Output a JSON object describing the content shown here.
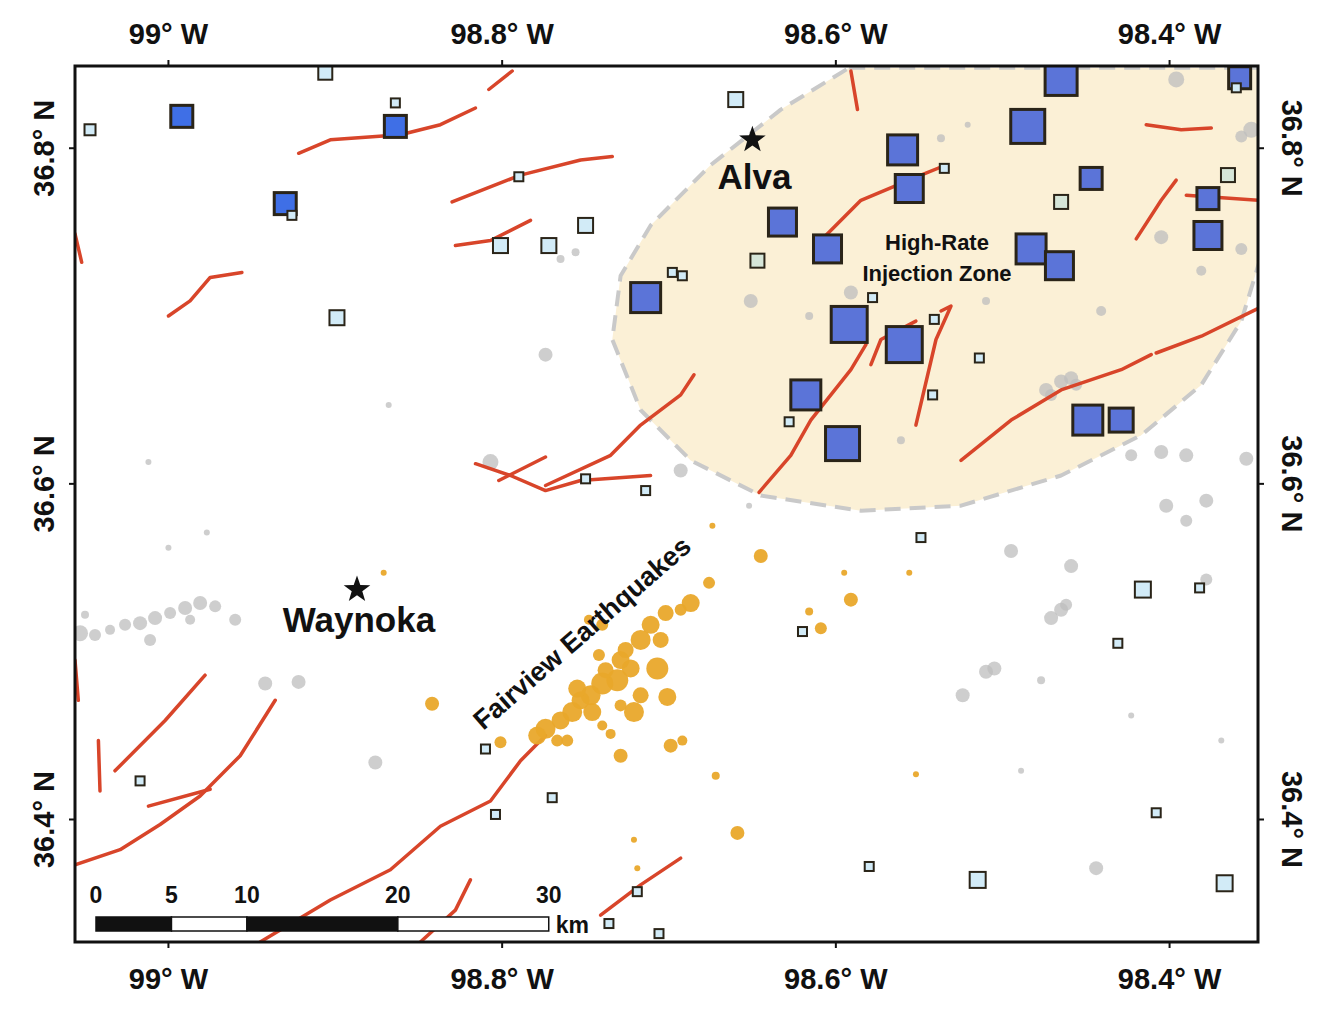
{
  "chart_data": {
    "type": "map",
    "xlim": [
      -99.056,
      -98.347
    ],
    "ylim": [
      36.327,
      36.849
    ],
    "xticks": [
      {
        "value": -99,
        "label": "99° W"
      },
      {
        "value": -98.8,
        "label": "98.8° W"
      },
      {
        "value": -98.6,
        "label": "98.6° W"
      },
      {
        "value": -98.4,
        "label": "98.4° W"
      }
    ],
    "yticks": [
      {
        "value": 36.4,
        "label": "36.4° N"
      },
      {
        "value": 36.6,
        "label": "36.6° N"
      },
      {
        "value": 36.8,
        "label": "36.8° N"
      }
    ],
    "grid": false,
    "zone": {
      "label": [
        "High-Rate",
        "Injection Zone"
      ],
      "color": "#fbf0d6",
      "lon": [
        -98.592,
        -98.346,
        -98.346,
        -98.357,
        -98.381,
        -98.417,
        -98.465,
        -98.525,
        -98.585,
        -98.645,
        -98.687,
        -98.717,
        -98.734,
        -98.729,
        -98.711,
        -98.675,
        -98.633
      ],
      "lat": [
        36.848,
        36.848,
        36.733,
        36.697,
        36.659,
        36.629,
        36.605,
        36.587,
        36.584,
        36.593,
        36.614,
        36.644,
        36.686,
        36.724,
        36.754,
        36.79,
        36.823
      ]
    },
    "towns": [
      {
        "name": "Alva",
        "lon": -98.65,
        "lat": 36.805
      },
      {
        "name": "Waynoka",
        "lon": -98.887,
        "lat": 36.537
      }
    ],
    "faults": {
      "color": "#d8452a",
      "lines": [
        {
          "lon": [
            -98.922,
            -98.903,
            -98.861,
            -98.837,
            -98.816
          ],
          "lat": [
            36.797,
            36.805,
            36.808,
            36.814,
            36.824
          ]
        },
        {
          "lon": [
            -98.808,
            -98.794
          ],
          "lat": [
            36.835,
            36.846
          ]
        },
        {
          "lon": [
            -98.83,
            -98.789,
            -98.753,
            -98.734
          ],
          "lat": [
            36.768,
            36.784,
            36.793,
            36.795
          ]
        },
        {
          "lon": [
            -98.828,
            -98.807,
            -98.783
          ],
          "lat": [
            36.742,
            36.745,
            36.757
          ]
        },
        {
          "lon": [
            -99.0,
            -98.987,
            -98.975,
            -98.956
          ],
          "lat": [
            36.7,
            36.709,
            36.723,
            36.726
          ]
        },
        {
          "lon": [
            -99.056,
            -99.052
          ],
          "lat": [
            36.749,
            36.732
          ]
        },
        {
          "lon": [
            -98.774,
            -98.735,
            -98.717,
            -98.693,
            -98.685
          ],
          "lat": [
            36.599,
            36.617,
            36.635,
            36.653,
            36.665
          ]
        },
        {
          "lon": [
            -98.816,
            -98.795,
            -98.774,
            -98.753,
            -98.711
          ],
          "lat": [
            36.612,
            36.605,
            36.596,
            36.602,
            36.605
          ]
        },
        {
          "lon": [
            -98.802,
            -98.774
          ],
          "lat": [
            36.602,
            36.616
          ]
        },
        {
          "lon": [
            -98.591,
            -98.587
          ],
          "lat": [
            36.846,
            36.823
          ]
        },
        {
          "lon": [
            -98.609,
            -98.585,
            -98.549,
            -98.534
          ],
          "lat": [
            36.745,
            36.769,
            36.784,
            36.79
          ]
        },
        {
          "lon": [
            -98.579,
            -98.573,
            -98.552
          ],
          "lat": [
            36.671,
            36.686,
            36.697
          ]
        },
        {
          "lon": [
            -98.537,
            -98.531,
            -98.54,
            -98.552
          ],
          "lat": [
            36.703,
            36.706,
            36.686,
            36.635
          ]
        },
        {
          "lon": [
            -98.646,
            -98.627,
            -98.615,
            -98.591,
            -98.582
          ],
          "lat": [
            36.595,
            36.617,
            36.638,
            36.668,
            36.683
          ]
        },
        {
          "lon": [
            -98.525,
            -98.495,
            -98.465,
            -98.429,
            -98.411
          ],
          "lat": [
            36.614,
            36.638,
            36.656,
            36.668,
            36.677
          ]
        },
        {
          "lon": [
            -98.408,
            -98.381,
            -98.346
          ],
          "lat": [
            36.678,
            36.688,
            36.705
          ]
        },
        {
          "lon": [
            -98.414,
            -98.393,
            -98.375
          ],
          "lat": [
            36.814,
            36.811,
            36.812
          ]
        },
        {
          "lon": [
            -98.42,
            -98.405,
            -98.396
          ],
          "lat": [
            36.746,
            36.769,
            36.781
          ]
        },
        {
          "lon": [
            -98.39,
            -98.346
          ],
          "lat": [
            36.772,
            36.769
          ]
        },
        {
          "lon": [
            -99.056,
            -99.029,
            -99.005,
            -98.981,
            -98.957,
            -98.936
          ],
          "lat": [
            36.373,
            36.382,
            36.397,
            36.414,
            36.438,
            36.471
          ]
        },
        {
          "lon": [
            -99.012,
            -98.975
          ],
          "lat": [
            36.408,
            36.418
          ]
        },
        {
          "lon": [
            -99.032,
            -99.002,
            -98.978
          ],
          "lat": [
            36.429,
            36.459,
            36.486
          ]
        },
        {
          "lon": [
            -99.041,
            -99.042
          ],
          "lat": [
            36.417,
            36.447
          ]
        },
        {
          "lon": [
            -99.054,
            -99.056
          ],
          "lat": [
            36.471,
            36.495
          ]
        },
        {
          "lon": [
            -98.945,
            -98.903,
            -98.867,
            -98.837,
            -98.807,
            -98.789,
            -98.774
          ],
          "lat": [
            36.327,
            36.352,
            36.37,
            36.396,
            36.411,
            36.435,
            36.45
          ]
        },
        {
          "lon": [
            -98.849,
            -98.828,
            -98.819
          ],
          "lat": [
            36.327,
            36.346,
            36.364
          ]
        },
        {
          "lon": [
            -98.741,
            -98.717,
            -98.693
          ],
          "lat": [
            36.343,
            36.361,
            36.377
          ]
        }
      ]
    },
    "series": [
      {
        "type": "scatter",
        "marker": "square",
        "x": [
          -98.906,
          -99.047,
          -98.992,
          -98.864,
          -98.864,
          -98.93,
          -98.926,
          -98.79,
          -98.801,
          -98.772,
          -98.75,
          -98.899,
          -98.66,
          -98.465,
          -98.358,
          -98.36,
          -98.485,
          -98.56,
          -98.556,
          -98.535,
          -98.447,
          -98.465,
          -98.365,
          -98.377,
          -98.377,
          -98.632,
          -98.605,
          -98.647,
          -98.483,
          -98.466,
          -98.714,
          -98.698,
          -98.692,
          -98.578,
          -98.592,
          -98.541,
          -98.559,
          -98.514,
          -98.618,
          -98.542,
          -98.628,
          -98.596,
          -98.449,
          -98.429,
          -98.75,
          -98.714,
          -98.549,
          -98.62,
          -98.416,
          -98.382,
          -98.431,
          -98.81,
          -99.017,
          -98.77,
          -98.804,
          -98.408,
          -98.58,
          -98.515,
          -98.367,
          -98.719,
          -98.736,
          -98.706
        ],
        "y": [
          36.845,
          36.811,
          36.819,
          36.827,
          36.813,
          36.767,
          36.76,
          36.783,
          36.742,
          36.742,
          36.754,
          36.699,
          36.829,
          36.841,
          36.842,
          36.836,
          36.813,
          36.799,
          36.776,
          36.788,
          36.782,
          36.768,
          36.784,
          36.77,
          36.748,
          36.756,
          36.74,
          36.733,
          36.74,
          36.73,
          36.711,
          36.726,
          36.724,
          36.711,
          36.695,
          36.698,
          36.683,
          36.675,
          36.653,
          36.653,
          36.637,
          36.624,
          36.638,
          36.638,
          36.603,
          36.596,
          36.568,
          36.512,
          36.537,
          36.538,
          36.505,
          36.442,
          36.423,
          36.413,
          36.403,
          36.404,
          36.372,
          36.364,
          36.362,
          36.357,
          36.338,
          36.332
        ],
        "sizes": [
          14,
          11,
          22,
          9,
          22,
          22,
          9,
          9,
          15,
          15,
          15,
          15,
          15,
          32,
          22,
          9,
          34,
          30,
          28,
          9,
          22,
          14,
          14,
          22,
          28,
          28,
          28,
          14,
          30,
          28,
          30,
          9,
          9,
          9,
          36,
          9,
          36,
          9,
          30,
          9,
          9,
          34,
          30,
          24,
          9,
          9,
          9,
          9,
          16,
          9,
          9,
          9,
          9,
          9,
          9,
          9,
          9,
          16,
          16,
          9,
          9,
          9
        ],
        "colors": [
          "#d2ebf7",
          "#d2ebf7",
          "#3f6fe6",
          "#d2ebf7",
          "#3f6fe6",
          "#3f6fe6",
          "#d2ebf7",
          "#d2ebf7",
          "#d2ebf7",
          "#d2ebf7",
          "#d2ebf7",
          "#d2ebf7",
          "#d2ebf7",
          "#5b74d8",
          "#5b74d8",
          "#d2ebf7",
          "#5b74d8",
          "#5b74d8",
          "#5b74d8",
          "#d2ebf7",
          "#5b74d8",
          "#d6e6d9",
          "#d6e6d9",
          "#5b74d8",
          "#5b74d8",
          "#5b74d8",
          "#5b74d8",
          "#d6e6d9",
          "#5b74d8",
          "#5b74d8",
          "#5b74d8",
          "#d2ebf7",
          "#d2ebf7",
          "#d2ebf7",
          "#5b74d8",
          "#d2ebf7",
          "#5b74d8",
          "#d2ebf7",
          "#5b74d8",
          "#d2ebf7",
          "#d2ebf7",
          "#5b74d8",
          "#5b74d8",
          "#5b74d8",
          "#d2ebf7",
          "#d2ebf7",
          "#d2ebf7",
          "#d2ebf7",
          "#d2ebf7",
          "#d2ebf7",
          "#d2ebf7",
          "#d2ebf7",
          "#d2ebf7",
          "#d2ebf7",
          "#d2ebf7",
          "#d2ebf7",
          "#d2ebf7",
          "#d2ebf7",
          "#d2ebf7",
          "#d2ebf7",
          "#d2ebf7",
          "#d2ebf7"
        ]
      },
      {
        "type": "scatter",
        "marker": "circle",
        "color": "#bdbdbd",
        "x": [
          -99.053,
          -99.044,
          -99.035,
          -99.026,
          -99.017,
          -99.008,
          -98.999,
          -98.99,
          -98.981,
          -98.972,
          -98.96,
          -98.942,
          -98.922,
          -99.011,
          -99.05,
          -98.987,
          -98.774,
          -98.868,
          -98.876,
          -98.807,
          -99.012,
          -99.0,
          -98.977,
          -98.693,
          -98.765,
          -98.756,
          -98.652,
          -98.396,
          -98.351,
          -98.357,
          -98.537,
          -98.521,
          -98.405,
          -98.357,
          -98.381,
          -98.591,
          -98.651,
          -98.616,
          -98.498,
          -98.474,
          -98.465,
          -98.459,
          -98.471,
          -98.456,
          -98.423,
          -98.405,
          -98.39,
          -98.354,
          -98.51,
          -98.441,
          -98.561,
          -98.402,
          -98.378,
          -98.39,
          -98.495,
          -98.459,
          -98.471,
          -98.465,
          -98.462,
          -98.51,
          -98.505,
          -98.524,
          -98.378,
          -98.477,
          -98.444,
          -98.369,
          -98.423,
          -98.489
        ],
        "y": [
          36.511,
          36.51,
          36.513,
          36.516,
          36.517,
          36.52,
          36.523,
          36.526,
          36.529,
          36.527,
          36.519,
          36.481,
          36.482,
          36.507,
          36.522,
          36.519,
          36.677,
          36.647,
          36.434,
          36.613,
          36.613,
          36.562,
          36.571,
          36.608,
          36.734,
          36.738,
          36.587,
          36.841,
          36.811,
          36.807,
          36.806,
          36.814,
          36.747,
          36.74,
          36.727,
          36.714,
          36.709,
          36.7,
          36.726,
          36.656,
          36.661,
          36.663,
          36.653,
          36.659,
          36.617,
          36.619,
          36.617,
          36.615,
          36.709,
          36.703,
          36.626,
          36.587,
          36.59,
          36.578,
          36.56,
          36.551,
          36.52,
          36.525,
          36.528,
          36.488,
          36.49,
          36.474,
          36.543,
          36.483,
          36.371,
          36.447,
          36.462,
          36.429
        ],
        "sizes": [
          8,
          6,
          5,
          6,
          7,
          7,
          6,
          7,
          7,
          6,
          6,
          7,
          7,
          6,
          4,
          5,
          7,
          3,
          7,
          8,
          3,
          3,
          3,
          7,
          4,
          4,
          3,
          8,
          8,
          6,
          4,
          3,
          7,
          6,
          5,
          7,
          7,
          4,
          4,
          7,
          7,
          7,
          6,
          6,
          6,
          7,
          7,
          7,
          4,
          5,
          4,
          7,
          7,
          6,
          7,
          7,
          7,
          7,
          6,
          7,
          7,
          7,
          6,
          4,
          7,
          3,
          3,
          3
        ]
      },
      {
        "type": "scatter",
        "marker": "circle",
        "name": "Fairview Earthquakes",
        "color": "#e9a82b",
        "x": [
          -98.645,
          -98.676,
          -98.687,
          -98.693,
          -98.702,
          -98.711,
          -98.717,
          -98.707,
          -98.723,
          -98.731,
          -98.74,
          -98.747,
          -98.753,
          -98.755,
          -98.729,
          -98.738,
          -98.746,
          -98.758,
          -98.765,
          -98.774,
          -98.779,
          -98.767,
          -98.761,
          -98.701,
          -98.721,
          -98.729,
          -98.699,
          -98.692,
          -98.801,
          -98.842,
          -98.74,
          -98.748,
          -98.609,
          -98.616,
          -98.591,
          -98.595,
          -98.659,
          -98.672,
          -98.735,
          -98.717,
          -98.729,
          -98.74,
          -98.742,
          -98.721,
          -98.719,
          -98.674,
          -98.556,
          -98.871,
          -98.552,
          -98.705,
          -98.726
        ],
        "y": [
          36.557,
          36.541,
          36.529,
          36.525,
          36.523,
          36.516,
          36.507,
          36.49,
          36.49,
          36.483,
          36.481,
          36.474,
          36.471,
          36.478,
          36.495,
          36.489,
          36.464,
          36.464,
          36.459,
          36.454,
          36.45,
          36.447,
          36.447,
          36.473,
          36.464,
          36.438,
          36.444,
          36.447,
          36.446,
          36.469,
          36.516,
          36.519,
          36.514,
          36.524,
          36.531,
          36.547,
          36.392,
          36.426,
          36.451,
          36.474,
          36.468,
          36.456,
          36.498,
          36.388,
          36.371,
          36.575,
          36.547,
          36.547,
          36.427,
          36.507,
          36.501
        ],
        "sizes": [
          7,
          6,
          9,
          6,
          8,
          9,
          10,
          11,
          9,
          11,
          11,
          10,
          9,
          9,
          9,
          8,
          9,
          10,
          9,
          10,
          9,
          6,
          6,
          9,
          10,
          7,
          7,
          5,
          6,
          7,
          6,
          5,
          6,
          4,
          7,
          3,
          7,
          4,
          5,
          8,
          6,
          5,
          6,
          3,
          3,
          3,
          3,
          3,
          3,
          8,
          8
        ]
      }
    ],
    "scale_bar": {
      "ticks": [
        0,
        5,
        10,
        20,
        30
      ],
      "unit": "km"
    }
  }
}
